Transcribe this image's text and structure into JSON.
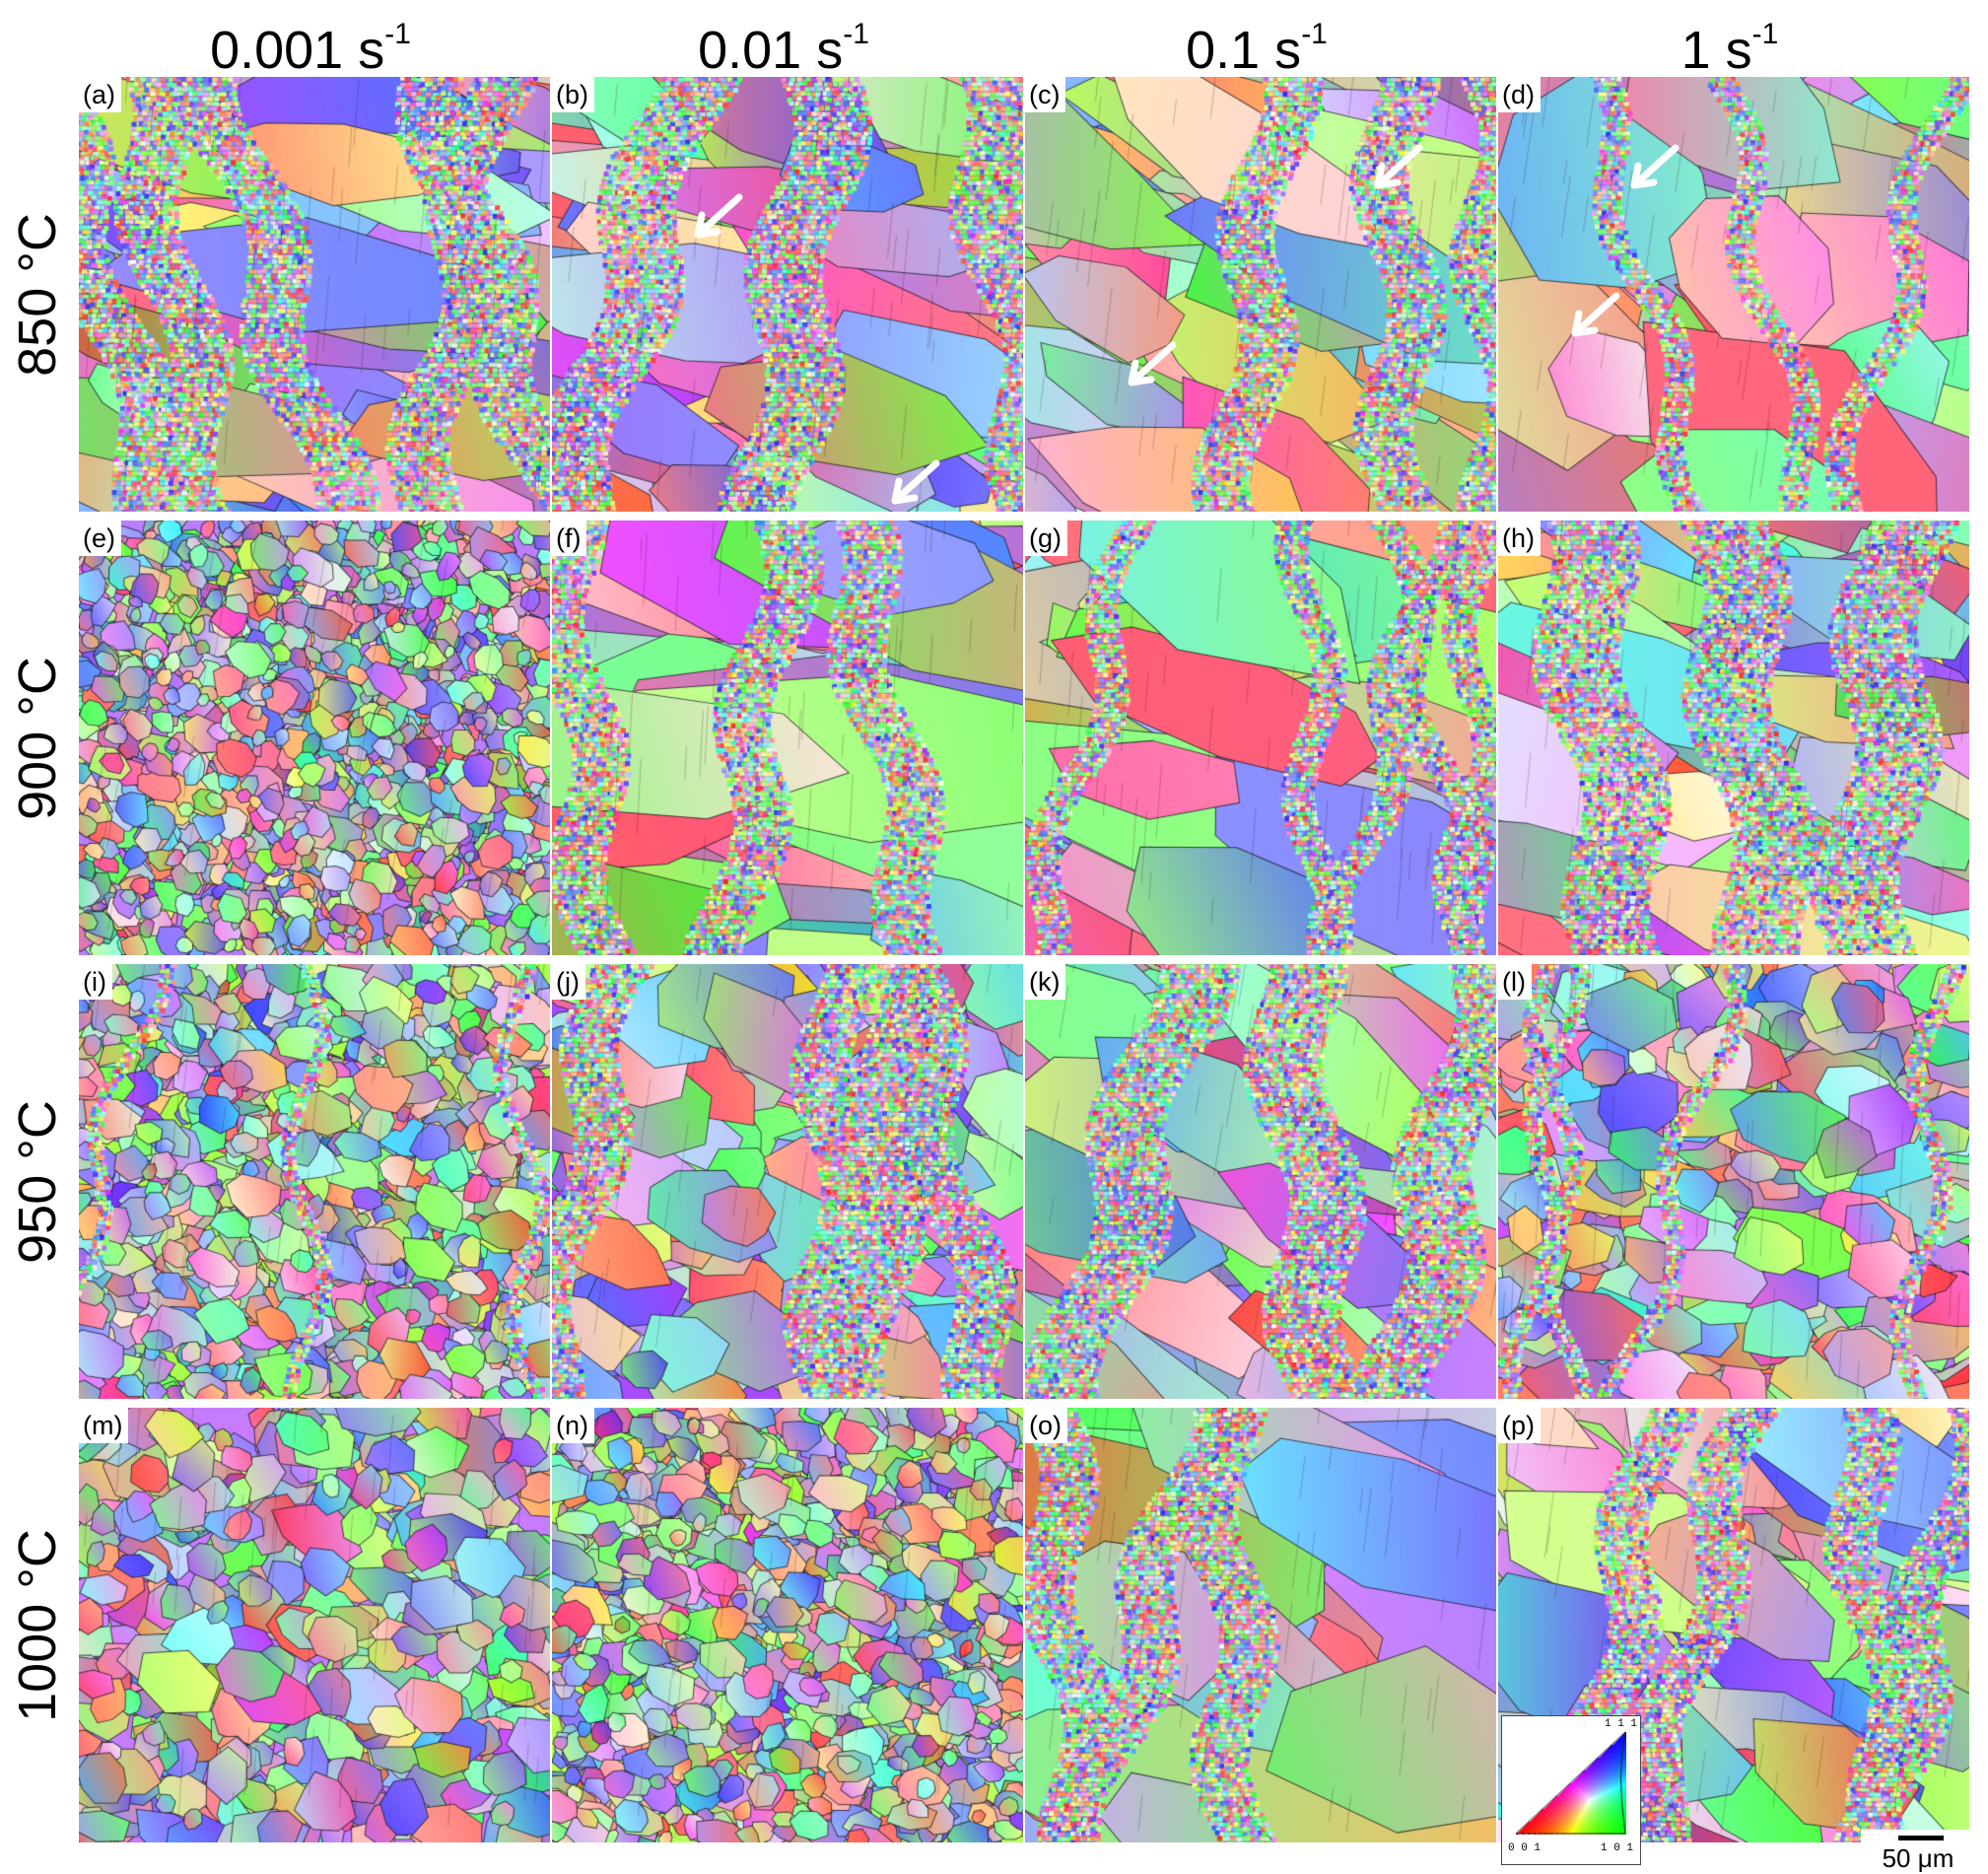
{
  "strain_rates": [
    {
      "value": "0.001 s",
      "exp": "-1"
    },
    {
      "value": "0.01 s",
      "exp": "-1"
    },
    {
      "value": "0.1 s",
      "exp": "-1"
    },
    {
      "value": "1 s",
      "exp": "-1"
    }
  ],
  "temperatures": [
    "850 °C",
    "900 °C",
    "950 °C",
    "1000 °C"
  ],
  "panels": [
    {
      "label": "(a)",
      "structure": "elongated grains with dense fine-grain bands",
      "arrows": 0
    },
    {
      "label": "(b)",
      "structure": "elongated grains with fine-grain bands",
      "arrows": 2
    },
    {
      "label": "(c)",
      "structure": "elongated grains with fine-grain bands",
      "arrows": 2
    },
    {
      "label": "(d)",
      "structure": "coarse grains with few fine-grain bands",
      "arrows": 2
    },
    {
      "label": "(e)",
      "structure": "fully recrystallized fine equiaxed grains",
      "arrows": 0
    },
    {
      "label": "(f)",
      "structure": "large elongated grains with fine-grain necklaces",
      "arrows": 0
    },
    {
      "label": "(g)",
      "structure": "large elongated grains with fine-grain necklaces",
      "arrows": 0
    },
    {
      "label": "(h)",
      "structure": "elongated grains with fine-grain bands",
      "arrows": 0
    },
    {
      "label": "(i)",
      "structure": "mostly recrystallized fine equiaxed grains",
      "arrows": 0
    },
    {
      "label": "(j)",
      "structure": "mixed coarse and fine grains",
      "arrows": 0
    },
    {
      "label": "(k)",
      "structure": "elongated grains with fine-grain bands",
      "arrows": 0
    },
    {
      "label": "(l)",
      "structure": "partially recrystallized medium grains",
      "arrows": 0
    },
    {
      "label": "(m)",
      "structure": "fully recrystallized equiaxed grains",
      "arrows": 0
    },
    {
      "label": "(n)",
      "structure": "fully recrystallized fine equiaxed grains",
      "arrows": 0
    },
    {
      "label": "(o)",
      "structure": "large elongated grains with fine-grain necklaces",
      "arrows": 0
    },
    {
      "label": "(p)",
      "structure": "elongated grains with fine-grain necklaces",
      "arrows": 0
    }
  ],
  "ipf_legend": {
    "vertex_001": "0 0 1",
    "vertex_101": "1 0 1",
    "vertex_111": "1 1 1",
    "colors": {
      "001": "#ff0000",
      "101": "#00ff00",
      "111": "#0000ff"
    }
  },
  "scale_bar": {
    "label": "50 μm"
  }
}
